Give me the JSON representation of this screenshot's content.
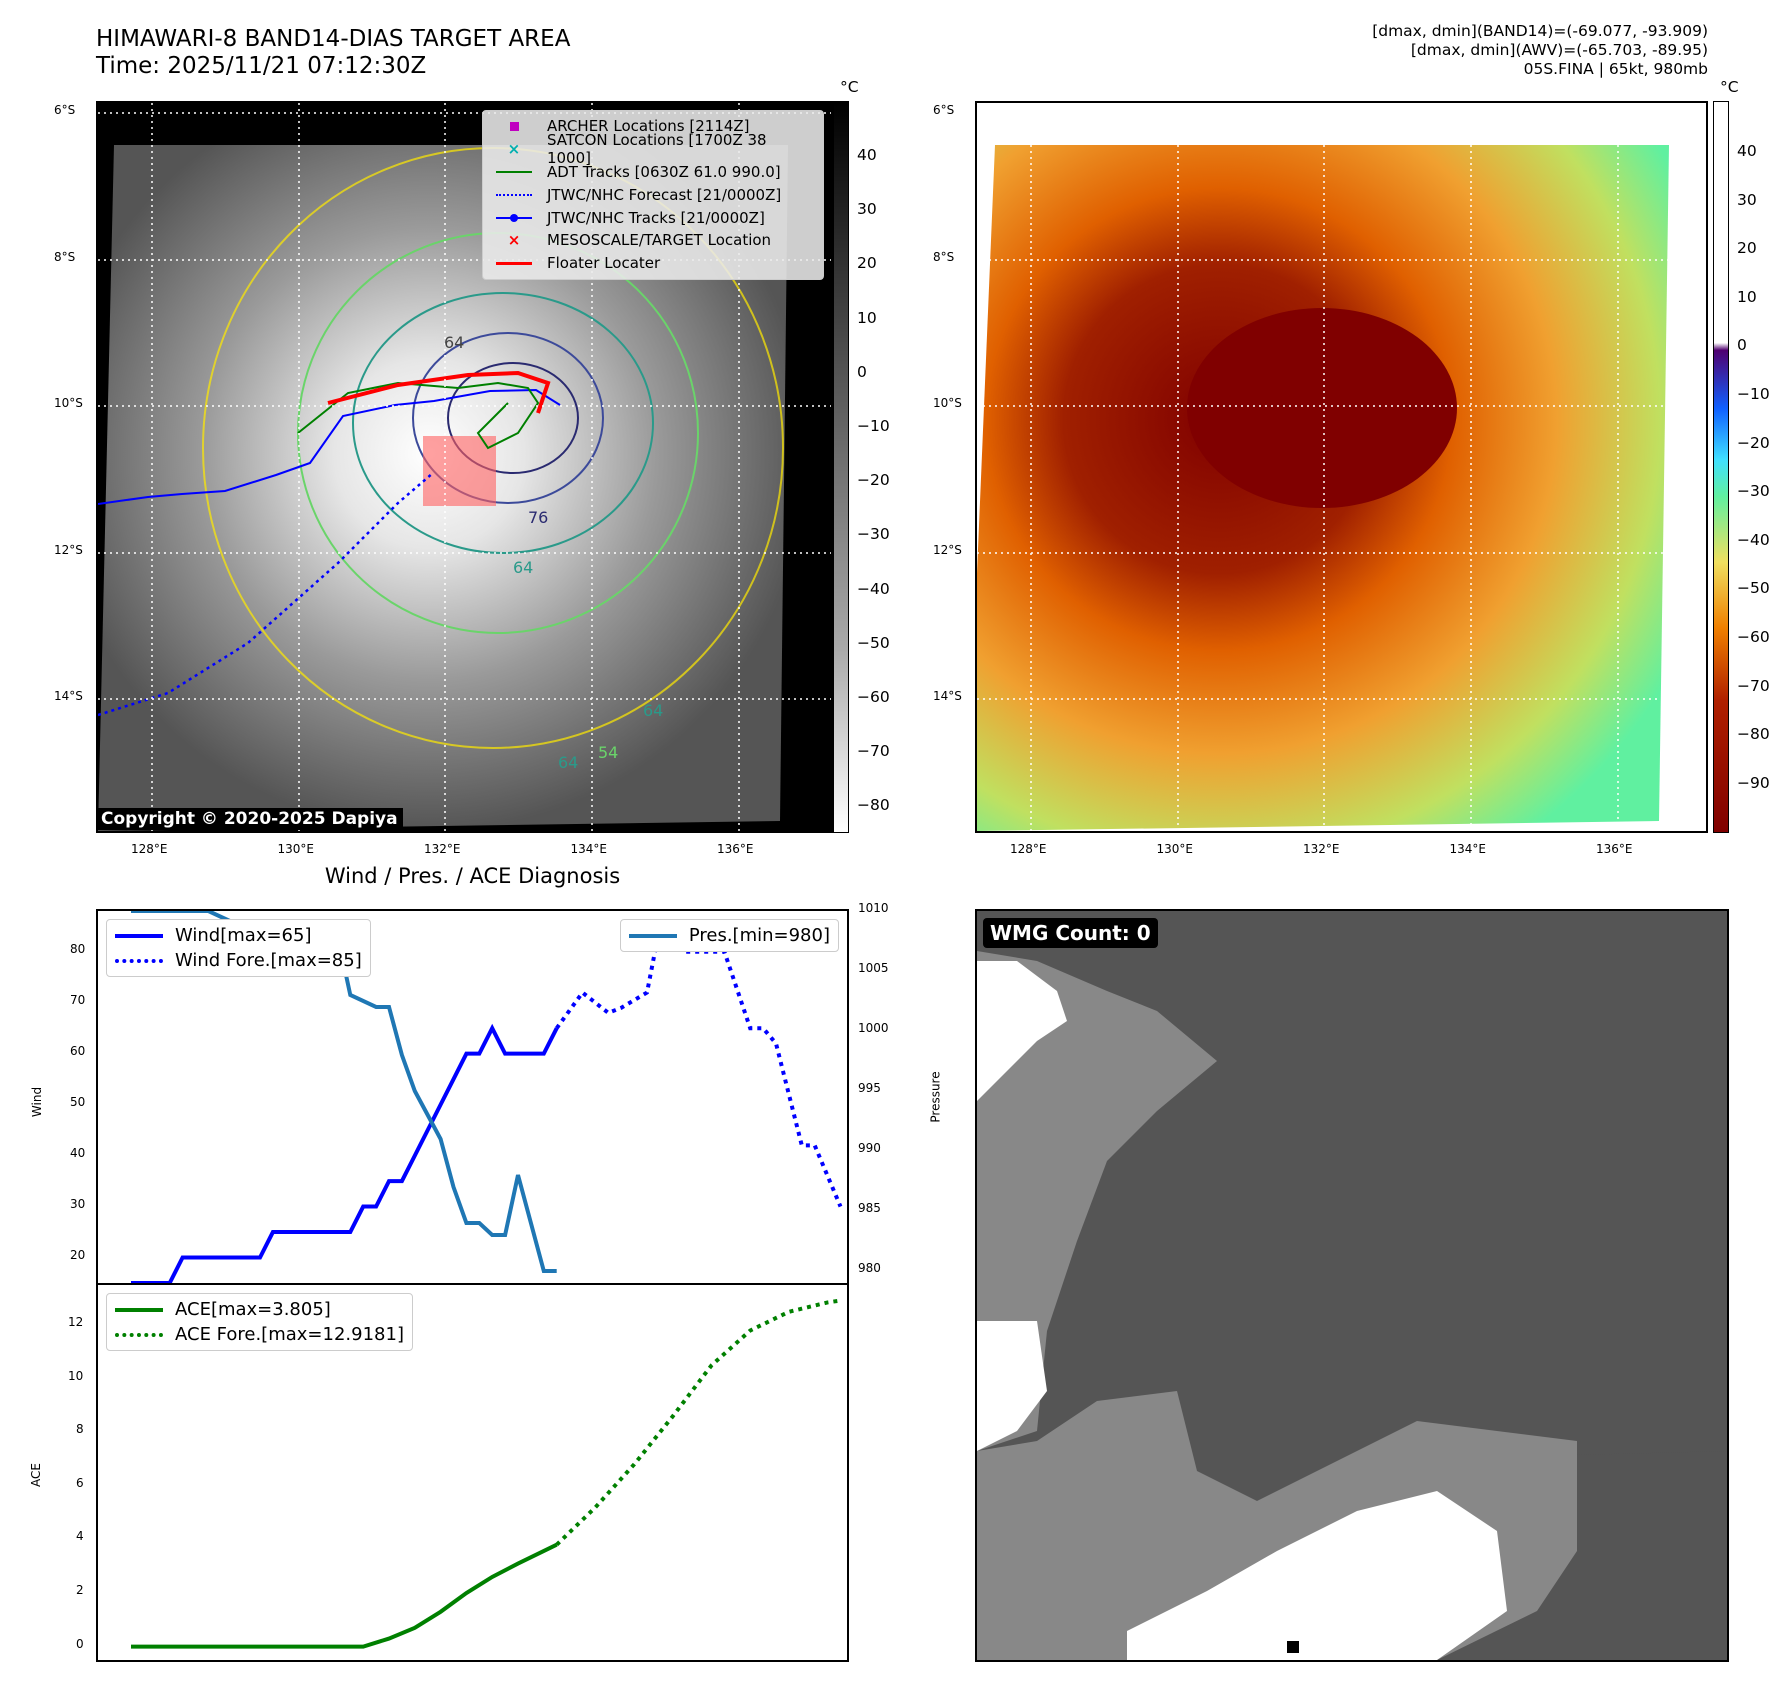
{
  "header": {
    "title": "HIMAWARI-8 BAND14-DIAS TARGET AREA",
    "time": "Time: 2025/11/21 07:12:30Z",
    "stats": [
      "[dmax, dmin](BAND14)=(-69.077, -93.909)",
      "[dmax, dmin](AWV)=(-65.703, -89.95)",
      "05S.FINA | 65kt, 980mb"
    ]
  },
  "map": {
    "lat_ticks": [
      "6°S",
      "8°S",
      "10°S",
      "12°S",
      "14°S"
    ],
    "lon_ticks": [
      "128°E",
      "130°E",
      "132°E",
      "134°E",
      "136°E"
    ],
    "copyright": "Copyright © 2020-2025 Dapiya",
    "contour_labels": [
      "64",
      "76",
      "64",
      "64",
      "54",
      "64"
    ],
    "legend": [
      "ARCHER Locations [2114Z]",
      "SATCON Locations [1700Z 38 1000]",
      "ADT Tracks [0630Z 61.0 990.0]",
      "JTWC/NHC Forecast [21/0000Z]",
      "JTWC/NHC Tracks [21/0000Z]",
      "MESOSCALE/TARGET Location",
      "Floater Locater"
    ],
    "colors": {
      "archer": "#c000c0",
      "satcon": "#00b0b0",
      "adt": "#008000",
      "jtwc": "#0000ff",
      "target": "#ff0000"
    }
  },
  "colorbar1": {
    "unit": "°C",
    "ticks": [
      "40",
      "30",
      "20",
      "10",
      "0",
      "−10",
      "−20",
      "−30",
      "−40",
      "−50",
      "−60",
      "−70",
      "−80"
    ]
  },
  "colorbar2": {
    "unit": "°C",
    "ticks": [
      "40",
      "30",
      "20",
      "10",
      "0",
      "−10",
      "−20",
      "−30",
      "−40",
      "−50",
      "−60",
      "−70",
      "−80",
      "−90"
    ]
  },
  "wmg": {
    "label": "WMG Count: 0"
  },
  "chart_data": [
    {
      "type": "line",
      "title": "Wind / Pres. / ACE Diagnosis",
      "ylabel": "Wind",
      "y2label": "Pressure",
      "ylim": [
        15,
        88
      ],
      "y2lim": [
        979,
        1010
      ],
      "yticks": [
        "20",
        "30",
        "40",
        "50",
        "60",
        "70",
        "80"
      ],
      "y2ticks": [
        "980",
        "985",
        "990",
        "995",
        "1000",
        "1005",
        "1010"
      ],
      "legend_left": [
        "Wind[max=65]",
        "Wind Fore.[max=85]"
      ],
      "legend_right": [
        "Pres.[min=980]"
      ],
      "series": [
        {
          "name": "Wind",
          "x": [
            0,
            3,
            4,
            10,
            11,
            17,
            18,
            19,
            20,
            21,
            22,
            23,
            24,
            25,
            26,
            27,
            28,
            29,
            30,
            31,
            32,
            33
          ],
          "values": [
            15,
            15,
            20,
            20,
            25,
            25,
            30,
            30,
            35,
            35,
            40,
            45,
            50,
            55,
            60,
            60,
            65,
            60,
            60,
            60,
            60,
            65
          ]
        },
        {
          "name": "Wind Fore.",
          "x": [
            33,
            35,
            37,
            38,
            40,
            41,
            43,
            45,
            46,
            48,
            49,
            50,
            51,
            52,
            53,
            55
          ],
          "values": [
            65,
            72,
            68,
            69,
            72,
            85,
            80,
            80,
            80,
            65,
            65,
            62,
            52,
            42,
            42,
            30
          ]
        },
        {
          "name": "Pres.",
          "x": [
            0,
            6,
            8,
            10,
            16,
            17,
            19,
            20,
            21,
            22,
            23,
            24,
            25,
            26,
            27,
            28,
            29,
            30,
            31,
            32,
            33
          ],
          "values": [
            1010,
            1010,
            1009,
            1008,
            1008,
            1003,
            1002,
            1002,
            998,
            995,
            993,
            991,
            987,
            984,
            984,
            983,
            983,
            988,
            984,
            980,
            980
          ]
        }
      ]
    },
    {
      "type": "line",
      "ylabel": "ACE",
      "ylim": [
        -0.5,
        13.5
      ],
      "yticks": [
        "0",
        "2",
        "4",
        "6",
        "8",
        "10",
        "12"
      ],
      "legend": [
        "ACE[max=3.805]",
        "ACE Fore.[max=12.9181]"
      ],
      "series": [
        {
          "name": "ACE",
          "x": [
            0,
            18,
            20,
            22,
            24,
            26,
            28,
            30,
            33
          ],
          "values": [
            0,
            0,
            0.3,
            0.7,
            1.3,
            2.0,
            2.6,
            3.1,
            3.805
          ]
        },
        {
          "name": "ACE Fore.",
          "x": [
            33,
            36,
            39,
            42,
            45,
            48,
            51,
            54,
            55
          ],
          "values": [
            3.805,
            5.2,
            6.8,
            8.6,
            10.5,
            11.8,
            12.5,
            12.85,
            12.92
          ]
        }
      ]
    }
  ]
}
